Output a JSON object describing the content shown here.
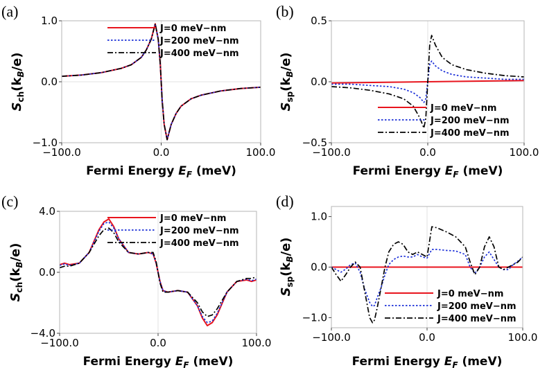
{
  "chart_data": [
    {
      "type": "line",
      "panel_label": "(a)",
      "xlabel": "Fermi Energy ",
      "xlabel_symbol": "E",
      "xlabel_sub": "F",
      "xlabel_unit": " (meV)",
      "ylabel_main": "S",
      "ylabel_sub": "ch",
      "ylabel_unit": "(k",
      "ylabel_unit_sub": "B",
      "ylabel_unit_end": "/e)",
      "xlim": [
        -100,
        100
      ],
      "ylim": [
        -1.0,
        1.0
      ],
      "x_ticks": [
        -100,
        0,
        100
      ],
      "x_tick_labels": [
        "−100.0",
        "0.0",
        "100.0"
      ],
      "y_ticks": [
        1.0,
        0.0,
        -1.0
      ],
      "y_tick_labels": [
        "1.0",
        "0.0",
        "−1.0"
      ],
      "legend": "top-center",
      "series": [
        {
          "name": "J=0 meV−nm",
          "color": "#e8141d",
          "style": "solid",
          "x": [
            -100,
            -80,
            -60,
            -40,
            -30,
            -20,
            -15,
            -10,
            -6,
            -3,
            -1,
            0,
            1,
            3,
            6,
            10,
            15,
            20,
            30,
            40,
            60,
            80,
            100
          ],
          "y": [
            0.09,
            0.11,
            0.15,
            0.22,
            0.28,
            0.4,
            0.52,
            0.7,
            0.95,
            0.7,
            0.3,
            0,
            -0.3,
            -0.7,
            -0.95,
            -0.7,
            -0.52,
            -0.4,
            -0.28,
            -0.22,
            -0.15,
            -0.11,
            -0.09
          ]
        },
        {
          "name": "J=200 meV−nm",
          "color": "#1a2ed8",
          "style": "dotted",
          "x": [
            -100,
            -80,
            -60,
            -40,
            -30,
            -20,
            -15,
            -10,
            -6,
            -3,
            -1,
            0,
            1,
            3,
            6,
            10,
            15,
            20,
            30,
            40,
            60,
            80,
            100
          ],
          "y": [
            0.09,
            0.11,
            0.15,
            0.22,
            0.28,
            0.4,
            0.52,
            0.7,
            0.95,
            0.7,
            0.3,
            0,
            -0.3,
            -0.7,
            -0.95,
            -0.7,
            -0.52,
            -0.4,
            -0.28,
            -0.22,
            -0.15,
            -0.11,
            -0.09
          ]
        },
        {
          "name": "J=400 meV−nm",
          "color": "#000000",
          "style": "dashdot",
          "x": [
            -100,
            -80,
            -60,
            -40,
            -30,
            -20,
            -15,
            -10,
            -6,
            -3,
            -1,
            0,
            1,
            3,
            6,
            10,
            15,
            20,
            30,
            40,
            60,
            80,
            100
          ],
          "y": [
            0.09,
            0.11,
            0.15,
            0.22,
            0.28,
            0.4,
            0.52,
            0.7,
            0.95,
            0.7,
            0.3,
            0,
            -0.3,
            -0.7,
            -0.95,
            -0.7,
            -0.52,
            -0.4,
            -0.28,
            -0.22,
            -0.15,
            -0.11,
            -0.09
          ]
        }
      ]
    },
    {
      "type": "line",
      "panel_label": "(b)",
      "xlabel": "Fermi Energy ",
      "xlabel_symbol": "E",
      "xlabel_sub": "F",
      "xlabel_unit": " (meV)",
      "ylabel_main": "S",
      "ylabel_sub": "sp",
      "ylabel_unit": "(k",
      "ylabel_unit_sub": "B",
      "ylabel_unit_end": "/e)",
      "xlim": [
        -100,
        100
      ],
      "ylim": [
        -0.5,
        0.5
      ],
      "x_ticks": [
        -100,
        0,
        100
      ],
      "x_tick_labels": [
        "−100.0",
        "0.0",
        "100.0"
      ],
      "y_ticks": [
        0.5,
        0.0,
        -0.5
      ],
      "y_tick_labels": [
        "0.5",
        "0.0",
        "−0.5"
      ],
      "legend": "lower-center",
      "series": [
        {
          "name": "J=0 meV−nm",
          "color": "#e8141d",
          "style": "solid",
          "x": [
            -100,
            100
          ],
          "y": [
            -0.01,
            0.01
          ]
        },
        {
          "name": "J=200 meV−nm",
          "color": "#1a2ed8",
          "style": "dotted",
          "x": [
            -100,
            -80,
            -60,
            -40,
            -25,
            -15,
            -8,
            -4,
            -2,
            0,
            2,
            4,
            8,
            15,
            25,
            40,
            60,
            80,
            100
          ],
          "y": [
            -0.02,
            -0.02,
            -0.03,
            -0.04,
            -0.06,
            -0.09,
            -0.13,
            -0.17,
            -0.14,
            0,
            0.14,
            0.17,
            0.13,
            0.09,
            0.06,
            0.04,
            0.03,
            0.02,
            0.02
          ]
        },
        {
          "name": "J=400 meV−nm",
          "color": "#000000",
          "style": "dashdot",
          "x": [
            -100,
            -80,
            -60,
            -40,
            -25,
            -15,
            -8,
            -4,
            -2,
            0,
            2,
            4,
            8,
            15,
            25,
            40,
            60,
            80,
            100
          ],
          "y": [
            -0.04,
            -0.05,
            -0.07,
            -0.1,
            -0.14,
            -0.2,
            -0.3,
            -0.38,
            -0.3,
            0,
            0.3,
            0.38,
            0.3,
            0.2,
            0.14,
            0.1,
            0.07,
            0.05,
            0.04
          ]
        }
      ]
    },
    {
      "type": "line",
      "panel_label": "(c)",
      "xlabel": "Fermi Energy ",
      "xlabel_symbol": "E",
      "xlabel_sub": "F",
      "xlabel_unit": " (meV)",
      "ylabel_main": "S",
      "ylabel_sub": "ch",
      "ylabel_unit": "(k",
      "ylabel_unit_sub": "B",
      "ylabel_unit_end": "/e)",
      "xlim": [
        -100,
        100
      ],
      "ylim": [
        -4.0,
        4.0
      ],
      "x_ticks": [
        -100,
        0,
        100
      ],
      "x_tick_labels": [
        "−100.0",
        "0.0",
        "100.0"
      ],
      "y_ticks": [
        4.0,
        0.0,
        -4.0
      ],
      "y_tick_labels": [
        "4.0",
        "0.0",
        "−4.0"
      ],
      "legend": "top-right",
      "series": [
        {
          "name": "J=0 meV−nm",
          "color": "#e8141d",
          "style": "solid",
          "x": [
            -100,
            -95,
            -90,
            -80,
            -70,
            -60,
            -55,
            -50,
            -45,
            -40,
            -30,
            -20,
            -10,
            -5,
            -2,
            0,
            2,
            5,
            10,
            20,
            30,
            40,
            45,
            50,
            55,
            60,
            70,
            80,
            90,
            95,
            100
          ],
          "y": [
            0.5,
            0.6,
            0.5,
            0.6,
            1.3,
            2.8,
            3.3,
            3.5,
            3.0,
            2.2,
            1.3,
            1.2,
            1.3,
            1.2,
            0.6,
            0,
            -0.6,
            -1.2,
            -1.3,
            -1.2,
            -1.3,
            -2.2,
            -3.0,
            -3.5,
            -3.3,
            -2.8,
            -1.3,
            -0.6,
            -0.5,
            -0.6,
            -0.5
          ]
        },
        {
          "name": "J=200 meV−nm",
          "color": "#1a2ed8",
          "style": "dotted",
          "x": [
            -100,
            -95,
            -90,
            -80,
            -70,
            -60,
            -55,
            -50,
            -45,
            -40,
            -30,
            -20,
            -10,
            -5,
            -2,
            0,
            2,
            5,
            10,
            20,
            30,
            40,
            45,
            50,
            55,
            60,
            70,
            80,
            90,
            95,
            100
          ],
          "y": [
            0.45,
            0.55,
            0.45,
            0.6,
            1.3,
            2.7,
            3.2,
            3.3,
            2.9,
            2.2,
            1.3,
            1.2,
            1.3,
            1.2,
            0.6,
            0,
            -0.6,
            -1.2,
            -1.3,
            -1.2,
            -1.3,
            -2.2,
            -2.9,
            -3.3,
            -3.2,
            -2.7,
            -1.3,
            -0.6,
            -0.45,
            -0.55,
            -0.45
          ]
        },
        {
          "name": "J=400 meV−nm",
          "color": "#000000",
          "style": "dashdot",
          "x": [
            -100,
            -95,
            -90,
            -80,
            -70,
            -60,
            -55,
            -50,
            -45,
            -40,
            -30,
            -20,
            -10,
            -5,
            -2,
            0,
            2,
            5,
            10,
            20,
            30,
            40,
            45,
            50,
            55,
            60,
            70,
            80,
            90,
            95,
            100
          ],
          "y": [
            0.3,
            0.4,
            0.4,
            0.6,
            1.3,
            2.4,
            2.8,
            2.9,
            2.6,
            2.0,
            1.3,
            1.2,
            1.3,
            1.3,
            0.7,
            0,
            -0.7,
            -1.3,
            -1.3,
            -1.2,
            -1.3,
            -2.0,
            -2.6,
            -2.9,
            -2.8,
            -2.4,
            -1.3,
            -0.6,
            -0.4,
            -0.4,
            -0.3
          ]
        }
      ]
    },
    {
      "type": "line",
      "panel_label": "(d)",
      "xlabel": "Fermi Energy ",
      "xlabel_symbol": "E",
      "xlabel_sub": "F",
      "xlabel_unit": " (meV)",
      "ylabel_main": "S",
      "ylabel_sub": "sp",
      "ylabel_unit": "(k",
      "ylabel_unit_sub": "B",
      "ylabel_unit_end": "/e)",
      "xlim": [
        -100,
        100
      ],
      "ylim": [
        -1.2,
        1.2
      ],
      "x_ticks": [
        -100,
        0,
        100
      ],
      "x_tick_labels": [
        "−100.0",
        "0.0",
        "100.0"
      ],
      "y_ticks": [
        1.0,
        0.0,
        -1.0
      ],
      "y_tick_labels": [
        "1.0",
        "0.0",
        "−1.0"
      ],
      "legend": "lower-center",
      "series": [
        {
          "name": "J=0 meV−nm",
          "color": "#e8141d",
          "style": "solid",
          "x": [
            -100,
            100
          ],
          "y": [
            0,
            0
          ]
        },
        {
          "name": "J=200 meV−nm",
          "color": "#1a2ed8",
          "style": "dotted",
          "x": [
            -100,
            -95,
            -90,
            -85,
            -80,
            -75,
            -70,
            -65,
            -60,
            -57,
            -55,
            -52,
            -48,
            -44,
            -40,
            -35,
            -30,
            -25,
            -20,
            -15,
            -10,
            -5,
            0,
            5,
            10,
            20,
            30,
            40,
            45,
            50,
            55,
            60,
            65,
            70,
            75,
            80,
            85,
            90,
            95,
            100
          ],
          "y": [
            0,
            -0.05,
            -0.1,
            -0.04,
            0.05,
            0.08,
            -0.1,
            -0.45,
            -0.7,
            -0.78,
            -0.76,
            -0.6,
            -0.4,
            -0.15,
            0.05,
            0.15,
            0.2,
            0.22,
            0.2,
            0.2,
            0.25,
            0.2,
            0.18,
            0.35,
            0.35,
            0.33,
            0.32,
            0.25,
            0.0,
            -0.12,
            0.0,
            0.2,
            0.3,
            0.15,
            0.0,
            -0.05,
            -0.05,
            0.05,
            0.12,
            0.2
          ]
        },
        {
          "name": "J=400 meV−nm",
          "color": "#000000",
          "style": "dashdot",
          "x": [
            -100,
            -95,
            -90,
            -85,
            -80,
            -75,
            -70,
            -65,
            -60,
            -57,
            -55,
            -52,
            -48,
            -44,
            -40,
            -35,
            -30,
            -25,
            -20,
            -15,
            -10,
            -5,
            0,
            5,
            10,
            20,
            30,
            40,
            45,
            50,
            55,
            60,
            65,
            70,
            75,
            80,
            85,
            90,
            95,
            100
          ],
          "y": [
            0,
            -0.15,
            -0.28,
            -0.15,
            0.0,
            0.1,
            0.0,
            -0.5,
            -1.0,
            -1.1,
            -1.05,
            -0.8,
            -0.4,
            0.0,
            0.3,
            0.45,
            0.5,
            0.45,
            0.3,
            0.25,
            0.3,
            0.25,
            0.2,
            0.8,
            0.78,
            0.7,
            0.6,
            0.4,
            0.1,
            -0.15,
            0.0,
            0.4,
            0.6,
            0.4,
            0.0,
            -0.05,
            0.0,
            0.05,
            0.1,
            0.2
          ]
        }
      ]
    }
  ]
}
